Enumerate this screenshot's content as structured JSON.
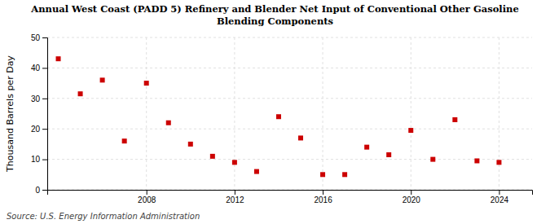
{
  "chart_data": {
    "type": "scatter",
    "title": "Annual West Coast (PADD 5) Refinery and Blender Net Input of Conventional Other Gasoline\nBlending Components",
    "y_label": "Thousand Barrels per Day",
    "annotations": [
      "Source: U.S. Energy Information Administration"
    ],
    "x": [
      2004,
      2005,
      2006,
      2007,
      2008,
      2009,
      2010,
      2011,
      2012,
      2013,
      2014,
      2015,
      2016,
      2017,
      2018,
      2019,
      2020,
      2021,
      2022,
      2023,
      2024
    ],
    "values": [
      43,
      31.5,
      36,
      16,
      35,
      22,
      15,
      11,
      9,
      6,
      24,
      17,
      5,
      5,
      14,
      11.5,
      19.5,
      10,
      23,
      9.5,
      9
    ],
    "color": "#cc0000",
    "marker": "square",
    "xlim": [
      2003.5,
      2025.5
    ],
    "ylim": [
      0,
      50
    ],
    "xticks": [
      2008,
      2012,
      2016,
      2020,
      2024
    ],
    "yticks": [
      0,
      10,
      20,
      30,
      40,
      50
    ],
    "grid": true
  }
}
